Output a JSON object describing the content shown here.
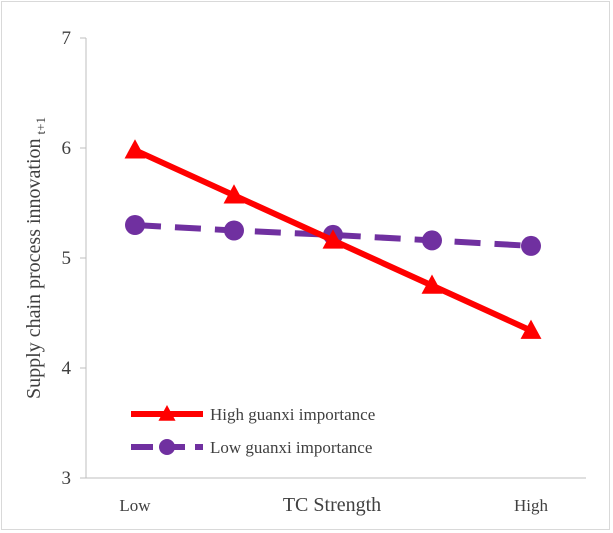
{
  "chart_data": {
    "type": "line",
    "title": "",
    "xlabel": "TC Strength",
    "ylabel": "Supply chain process innovation",
    "ylabel_subscript": "t+1",
    "x_tick_labels": {
      "left": "Low",
      "right": "High"
    },
    "x_points": 5,
    "ylim": [
      3,
      7
    ],
    "yticks": [
      "3",
      "4",
      "5",
      "6",
      "7"
    ],
    "grid": false,
    "legend_position": "bottom-left",
    "series": [
      {
        "name": "High guanxi importance",
        "color": "#ff0000",
        "style": "solid",
        "marker": "triangle",
        "values": [
          5.98,
          5.57,
          5.16,
          4.75,
          4.34
        ]
      },
      {
        "name": "Low guanxi importance",
        "color": "#7030a0",
        "style": "dashed",
        "marker": "circle",
        "values": [
          5.3,
          5.25,
          5.21,
          5.16,
          5.11
        ]
      }
    ]
  }
}
